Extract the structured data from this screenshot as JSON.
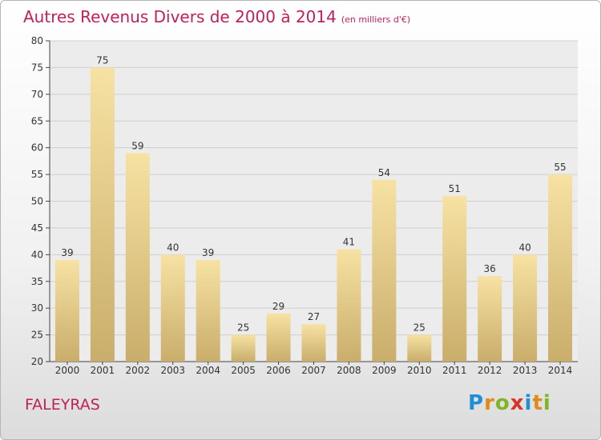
{
  "chart_data": {
    "type": "bar",
    "title": "Autres Revenus Divers de 2000 à 2014",
    "subtitle": "(en milliers d'€)",
    "categories": [
      "2000",
      "2001",
      "2002",
      "2003",
      "2004",
      "2005",
      "2006",
      "2007",
      "2008",
      "2009",
      "2010",
      "2011",
      "2012",
      "2013",
      "2014"
    ],
    "values": [
      39,
      75,
      59,
      40,
      39,
      25,
      29,
      27,
      41,
      54,
      25,
      51,
      36,
      40,
      55
    ],
    "ylim": [
      20,
      80
    ],
    "yticks": [
      20,
      25,
      30,
      35,
      40,
      45,
      50,
      55,
      60,
      65,
      70,
      75,
      80
    ],
    "grid": true,
    "bar_color": "#e8cf8a"
  },
  "footer": {
    "commune": "FALEYRAS",
    "logo": "Proxiti"
  }
}
